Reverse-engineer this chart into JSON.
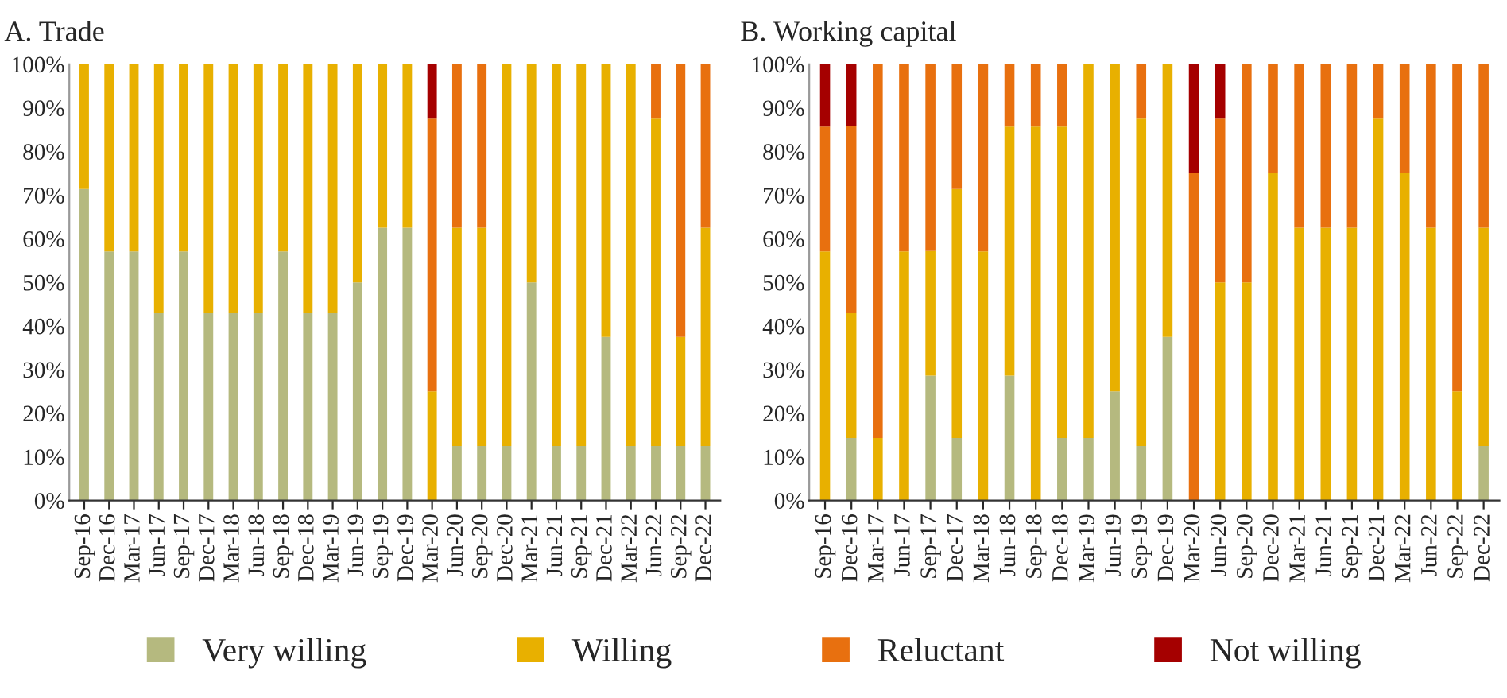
{
  "chart_data": [
    {
      "type": "bar",
      "title": "A. Trade",
      "stacked": true,
      "legend": "bottom",
      "grid": false,
      "categories": [
        "Sep-16",
        "Dec-16",
        "Mar-17",
        "Jun-17",
        "Sep-17",
        "Dec-17",
        "Mar-18",
        "Jun-18",
        "Sep-18",
        "Dec-18",
        "Mar-19",
        "Jun-19",
        "Sep-19",
        "Dec-19",
        "Mar-20",
        "Jun-20",
        "Sep-20",
        "Dec-20",
        "Mar-21",
        "Jun-21",
        "Sep-21",
        "Dec-21",
        "Mar-22",
        "Jun-22",
        "Sep-22",
        "Dec-22"
      ],
      "ylim": [
        0,
        100
      ],
      "yticks": [
        {
          "value": 0,
          "label": "0%"
        },
        {
          "value": 10,
          "label": "10%"
        },
        {
          "value": 20,
          "label": "20%"
        },
        {
          "value": 30,
          "label": "30%"
        },
        {
          "value": 40,
          "label": "40%"
        },
        {
          "value": 50,
          "label": "50%"
        },
        {
          "value": 60,
          "label": "60%"
        },
        {
          "value": 70,
          "label": "70%"
        },
        {
          "value": 80,
          "label": "80%"
        },
        {
          "value": 90,
          "label": "90%"
        },
        {
          "value": 100,
          "label": "100%"
        }
      ],
      "series": [
        {
          "name": "Very willing",
          "color": "#b5b97f",
          "values": [
            71.4,
            57.1,
            57.1,
            42.9,
            57.1,
            42.9,
            42.9,
            42.9,
            57.1,
            42.9,
            42.9,
            50,
            62.5,
            62.5,
            0,
            12.5,
            12.5,
            12.5,
            50,
            12.5,
            12.5,
            37.5,
            12.5,
            12.5,
            12.5,
            12.5
          ]
        },
        {
          "name": "Willing",
          "color": "#e8b000",
          "values": [
            28.6,
            42.9,
            42.9,
            57.1,
            42.9,
            57.1,
            57.1,
            57.1,
            42.9,
            57.1,
            57.1,
            50,
            37.5,
            37.5,
            25,
            50,
            50,
            87.5,
            50,
            87.5,
            87.5,
            62.5,
            87.5,
            75,
            25,
            50
          ]
        },
        {
          "name": "Reluctant",
          "color": "#e8700f",
          "values": [
            0,
            0,
            0,
            0,
            0,
            0,
            0,
            0,
            0,
            0,
            0,
            0,
            0,
            0,
            62.5,
            37.5,
            37.5,
            0,
            0,
            0,
            0,
            0,
            0,
            12.5,
            62.5,
            37.5
          ]
        },
        {
          "name": "Not willing",
          "color": "#a50000",
          "values": [
            0,
            0,
            0,
            0,
            0,
            0,
            0,
            0,
            0,
            0,
            0,
            0,
            0,
            0,
            12.5,
            0,
            0,
            0,
            0,
            0,
            0,
            0,
            0,
            0,
            0,
            0
          ]
        }
      ]
    },
    {
      "type": "bar",
      "title": "B. Working capital",
      "stacked": true,
      "grid": false,
      "categories": [
        "Sep-16",
        "Dec-16",
        "Mar-17",
        "Jun-17",
        "Sep-17",
        "Dec-17",
        "Mar-18",
        "Jun-18",
        "Sep-18",
        "Dec-18",
        "Mar-19",
        "Jun-19",
        "Sep-19",
        "Dec-19",
        "Mar-20",
        "Jun-20",
        "Sep-20",
        "Dec-20",
        "Mar-21",
        "Jun-21",
        "Sep-21",
        "Dec-21",
        "Mar-22",
        "Jun-22",
        "Sep-22",
        "Dec-22"
      ],
      "ylim": [
        0,
        100
      ],
      "yticks": [
        {
          "value": 0,
          "label": "0%"
        },
        {
          "value": 10,
          "label": "10%"
        },
        {
          "value": 20,
          "label": "20%"
        },
        {
          "value": 30,
          "label": "30%"
        },
        {
          "value": 40,
          "label": "40%"
        },
        {
          "value": 50,
          "label": "50%"
        },
        {
          "value": 60,
          "label": "60%"
        },
        {
          "value": 70,
          "label": "70%"
        },
        {
          "value": 80,
          "label": "80%"
        },
        {
          "value": 90,
          "label": "90%"
        },
        {
          "value": 100,
          "label": "100%"
        }
      ],
      "series": [
        {
          "color": "#b5b97f",
          "values": [
            0,
            14.3,
            0,
            0,
            28.6,
            14.3,
            0,
            28.6,
            0,
            14.3,
            14.3,
            25,
            12.5,
            37.5,
            0,
            0,
            0,
            0,
            0,
            0,
            0,
            0,
            0,
            0,
            0,
            12.5
          ]
        },
        {
          "color": "#e8b000",
          "values": [
            57.1,
            28.6,
            14.3,
            57.1,
            28.6,
            57.1,
            57.1,
            57.1,
            85.7,
            71.4,
            85.7,
            75,
            75,
            62.5,
            0,
            50,
            50,
            75,
            62.5,
            62.5,
            62.5,
            87.5,
            75,
            62.5,
            25,
            50
          ]
        },
        {
          "color": "#e8700f",
          "values": [
            28.6,
            42.9,
            85.7,
            42.9,
            42.9,
            28.6,
            42.9,
            14.3,
            14.3,
            14.3,
            0,
            0,
            12.5,
            0,
            75,
            37.5,
            50,
            25,
            37.5,
            37.5,
            37.5,
            12.5,
            25,
            37.5,
            75,
            37.5
          ]
        },
        {
          "color": "#a50000",
          "values": [
            14.3,
            14.3,
            0,
            0,
            0,
            0,
            0,
            0,
            0,
            0,
            0,
            0,
            0,
            0,
            25,
            12.5,
            0,
            0,
            0,
            0,
            0,
            0,
            0,
            0,
            0,
            0
          ]
        }
      ]
    }
  ]
}
